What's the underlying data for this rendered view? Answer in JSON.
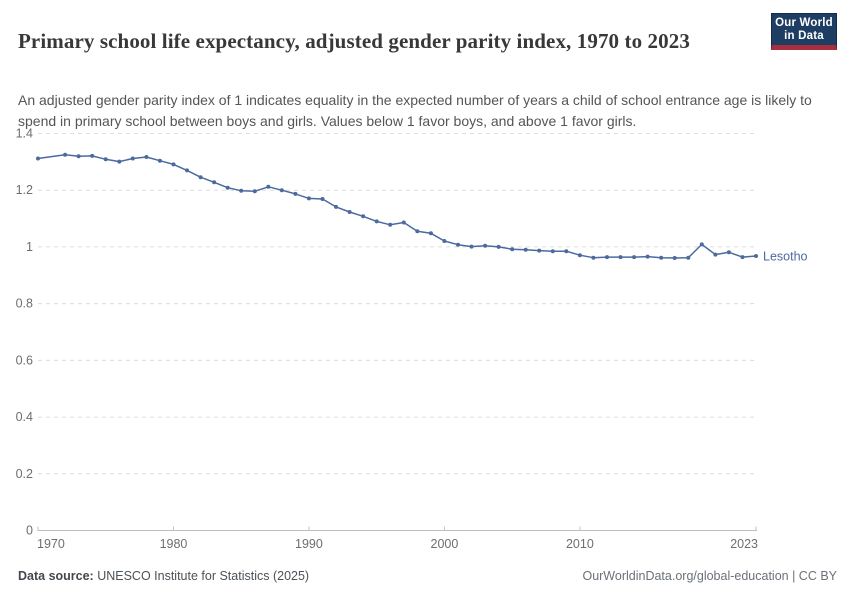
{
  "header": {
    "title": "Primary school life expectancy, adjusted gender parity index, 1970 to 2023",
    "subtitle": "An adjusted gender parity index of 1 indicates equality in the expected number of years a child of school entrance age is likely to spend in primary school between boys and girls. Values below 1 favor boys, and above 1 favor girls."
  },
  "logo": {
    "line1": "Our World",
    "line2": "in Data",
    "bg_color": "#1d3d63",
    "accent_color": "#a92e3e"
  },
  "chart_data": {
    "type": "line",
    "title": "Primary school life expectancy, adjusted gender parity index, 1970 to 2023",
    "xlabel": "",
    "ylabel": "",
    "xlim": [
      1970,
      2023
    ],
    "ylim": [
      0,
      1.4
    ],
    "grid": "horizontal-dashed",
    "legend_position": "end-of-line-label",
    "x": [
      1970,
      1972,
      1973,
      1974,
      1975,
      1976,
      1977,
      1978,
      1979,
      1980,
      1981,
      1982,
      1983,
      1984,
      1985,
      1986,
      1987,
      1988,
      1989,
      1990,
      1991,
      1992,
      1993,
      1994,
      1995,
      1996,
      1997,
      1998,
      1999,
      2000,
      2001,
      2002,
      2003,
      2004,
      2005,
      2006,
      2007,
      2008,
      2009,
      2010,
      2011,
      2012,
      2013,
      2014,
      2015,
      2016,
      2017,
      2018,
      2019,
      2020,
      2021,
      2022,
      2023
    ],
    "series": [
      {
        "name": "Lesotho",
        "color": "#4c6a9e",
        "values": [
          1.312,
          1.325,
          1.32,
          1.321,
          1.309,
          1.301,
          1.312,
          1.317,
          1.304,
          1.291,
          1.27,
          1.246,
          1.228,
          1.209,
          1.198,
          1.196,
          1.212,
          1.2,
          1.187,
          1.171,
          1.169,
          1.141,
          1.123,
          1.108,
          1.09,
          1.078,
          1.086,
          1.055,
          1.048,
          1.021,
          1.008,
          1.001,
          1.004,
          1.0,
          0.992,
          0.99,
          0.987,
          0.985,
          0.985,
          0.971,
          0.962,
          0.964,
          0.964,
          0.964,
          0.966,
          0.962,
          0.961,
          0.962,
          1.009,
          0.973,
          0.981,
          0.964,
          0.968
        ]
      }
    ],
    "yticks": [
      {
        "v": 0,
        "label": "0"
      },
      {
        "v": 0.2,
        "label": "0.2"
      },
      {
        "v": 0.4,
        "label": "0.4"
      },
      {
        "v": 0.6,
        "label": "0.6"
      },
      {
        "v": 0.8,
        "label": "0.8"
      },
      {
        "v": 1,
        "label": "1"
      },
      {
        "v": 1.2,
        "label": "1.2"
      },
      {
        "v": 1.4,
        "label": "1.4"
      }
    ],
    "xticks": [
      {
        "v": 1970,
        "label": "1970"
      },
      {
        "v": 1980,
        "label": "1980"
      },
      {
        "v": 1990,
        "label": "1990"
      },
      {
        "v": 2000,
        "label": "2000"
      },
      {
        "v": 2010,
        "label": "2010"
      },
      {
        "v": 2023,
        "label": "2023"
      }
    ]
  },
  "footer": {
    "source_label": "Data source:",
    "source_text": " UNESCO Institute for Statistics (2025)",
    "credit": "OurWorldinData.org/global-education | CC BY"
  }
}
